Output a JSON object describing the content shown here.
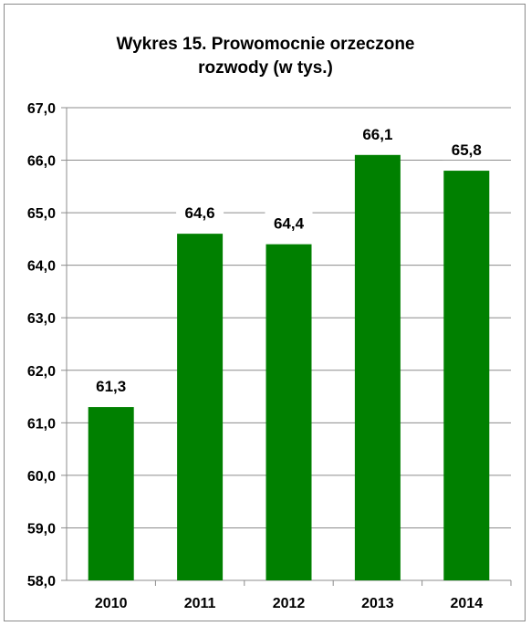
{
  "chart_data": {
    "type": "bar",
    "title_line1": "Wykres 15. Prowomocnie orzeczone",
    "title_line2": "rozwody (w tys.)",
    "categories": [
      "2010",
      "2011",
      "2012",
      "2013",
      "2014"
    ],
    "values": [
      61.3,
      64.6,
      64.4,
      66.1,
      65.8
    ],
    "value_labels": [
      "61,3",
      "64,6",
      "64,4",
      "66,1",
      "65,8"
    ],
    "ylim": [
      58.0,
      67.0
    ],
    "yticks": [
      58.0,
      59.0,
      60.0,
      61.0,
      62.0,
      63.0,
      64.0,
      65.0,
      66.0,
      67.0
    ],
    "ytick_labels": [
      "58,0",
      "59,0",
      "60,0",
      "61,0",
      "62,0",
      "63,0",
      "64,0",
      "65,0",
      "66,0",
      "67,0"
    ],
    "grid": true,
    "xlabel": "",
    "ylabel": "",
    "bar_color": "#008000",
    "grid_color": "#8c8c8c"
  }
}
